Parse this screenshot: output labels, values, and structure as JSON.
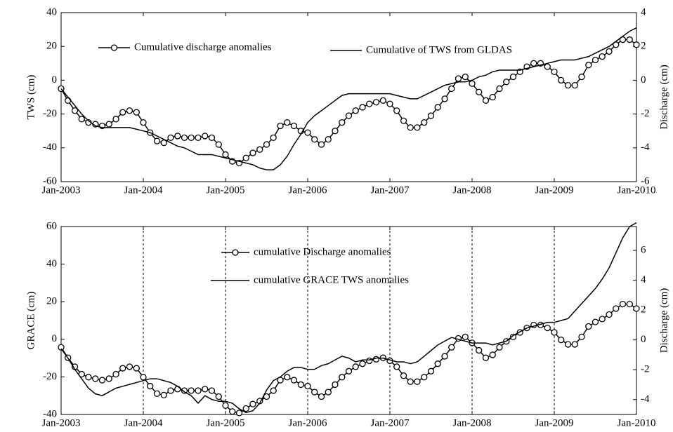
{
  "chart_data": [
    {
      "type": "line",
      "ylabel": "TWS (cm)",
      "y2label": "Discharge (cm)",
      "x": [
        2003,
        2003.083,
        2003.167,
        2003.25,
        2003.333,
        2003.417,
        2003.5,
        2003.583,
        2003.667,
        2003.75,
        2003.833,
        2003.917,
        2004,
        2004.083,
        2004.167,
        2004.25,
        2004.333,
        2004.417,
        2004.5,
        2004.583,
        2004.667,
        2004.75,
        2004.833,
        2004.917,
        2005,
        2005.083,
        2005.167,
        2005.25,
        2005.333,
        2005.417,
        2005.5,
        2005.583,
        2005.667,
        2005.75,
        2005.833,
        2005.917,
        2006,
        2006.083,
        2006.167,
        2006.25,
        2006.333,
        2006.417,
        2006.5,
        2006.583,
        2006.667,
        2006.75,
        2006.833,
        2006.917,
        2007,
        2007.083,
        2007.167,
        2007.25,
        2007.333,
        2007.417,
        2007.5,
        2007.583,
        2007.667,
        2007.75,
        2007.833,
        2007.917,
        2008,
        2008.083,
        2008.167,
        2008.25,
        2008.333,
        2008.417,
        2008.5,
        2008.583,
        2008.667,
        2008.75,
        2008.833,
        2008.917,
        2009,
        2009.083,
        2009.167,
        2009.25,
        2009.333,
        2009.417,
        2009.5,
        2009.583,
        2009.667,
        2009.75,
        2009.833,
        2009.917,
        2010
      ],
      "xlim": [
        2003,
        2010
      ],
      "xticks": [
        {
          "value": 2003,
          "label": "Jan-2003"
        },
        {
          "value": 2004,
          "label": "Jan-2004"
        },
        {
          "value": 2005,
          "label": "Jan-2005"
        },
        {
          "value": 2006,
          "label": "Jan-2006"
        },
        {
          "value": 2007,
          "label": "Jan-2007"
        },
        {
          "value": 2008,
          "label": "Jan-2008"
        },
        {
          "value": 2009,
          "label": "Jan-2009"
        },
        {
          "value": 2010,
          "label": "Jan-2010"
        }
      ],
      "ylim": [
        -60,
        40
      ],
      "yticks": [
        -60,
        -40,
        -20,
        0,
        20,
        40
      ],
      "y2lim": [
        -6,
        4
      ],
      "y2ticks": [
        -6,
        -4,
        -2,
        0,
        2,
        4
      ],
      "grid": false,
      "series": [
        {
          "name": "Cumulative discharge anomalies",
          "color": "#000000",
          "marker": "circle",
          "axis": "y2",
          "values": [
            -0.5,
            -1.2,
            -1.8,
            -2.3,
            -2.5,
            -2.6,
            -2.7,
            -2.6,
            -2.3,
            -1.9,
            -1.8,
            -1.9,
            -2.5,
            -3.1,
            -3.6,
            -3.7,
            -3.4,
            -3.3,
            -3.4,
            -3.4,
            -3.4,
            -3.3,
            -3.4,
            -3.8,
            -4.4,
            -4.8,
            -4.9,
            -4.6,
            -4.3,
            -4.1,
            -3.8,
            -3.4,
            -2.7,
            -2.5,
            -2.7,
            -3.0,
            -3.1,
            -3.5,
            -3.8,
            -3.5,
            -3.0,
            -2.5,
            -2.1,
            -1.8,
            -1.6,
            -1.4,
            -1.3,
            -1.2,
            -1.4,
            -1.8,
            -2.4,
            -2.8,
            -2.8,
            -2.5,
            -2.1,
            -1.6,
            -1.1,
            -0.5,
            0.1,
            0.2,
            -0.2,
            -0.7,
            -1.2,
            -1.0,
            -0.5,
            -0.1,
            0.2,
            0.5,
            0.8,
            1.0,
            1.0,
            0.8,
            0.5,
            0,
            -0.3,
            -0.3,
            0.2,
            0.9,
            1.2,
            1.4,
            1.7,
            2.1,
            2.4,
            2.4,
            2.1
          ]
        },
        {
          "name": "Cumulative of TWS from GLDAS",
          "color": "#000000",
          "values": [
            -5,
            -10,
            -15,
            -20,
            -24,
            -27,
            -28,
            -28,
            -28,
            -28,
            -28,
            -29,
            -30,
            -31,
            -33,
            -35,
            -37,
            -39,
            -40,
            -42,
            -44,
            -44,
            -44,
            -45,
            -46,
            -47,
            -48,
            -49,
            -50,
            -52,
            -53,
            -53,
            -50,
            -45,
            -38,
            -32,
            -25,
            -21,
            -18,
            -15,
            -12,
            -9,
            -8,
            -8,
            -8,
            -8,
            -8,
            -8,
            -8,
            -9,
            -10,
            -11,
            -11,
            -9,
            -7,
            -5,
            -3,
            -2,
            -1,
            -1,
            0,
            2,
            3,
            5,
            6,
            6,
            6,
            6,
            7,
            8,
            9,
            10,
            11,
            12,
            12,
            12,
            13,
            14,
            16,
            18,
            20,
            23,
            26,
            29,
            31
          ]
        }
      ]
    },
    {
      "type": "line",
      "ylabel": "GRACE (cm)",
      "y2label": "Discharge (cm)",
      "x": [
        2003,
        2003.083,
        2003.167,
        2003.25,
        2003.333,
        2003.417,
        2003.5,
        2003.583,
        2003.667,
        2003.75,
        2003.833,
        2003.917,
        2004,
        2004.083,
        2004.167,
        2004.25,
        2004.333,
        2004.417,
        2004.5,
        2004.583,
        2004.667,
        2004.75,
        2004.833,
        2004.917,
        2005,
        2005.083,
        2005.167,
        2005.25,
        2005.333,
        2005.417,
        2005.5,
        2005.583,
        2005.667,
        2005.75,
        2005.833,
        2005.917,
        2006,
        2006.083,
        2006.167,
        2006.25,
        2006.333,
        2006.417,
        2006.5,
        2006.583,
        2006.667,
        2006.75,
        2006.833,
        2006.917,
        2007,
        2007.083,
        2007.167,
        2007.25,
        2007.333,
        2007.417,
        2007.5,
        2007.583,
        2007.667,
        2007.75,
        2007.833,
        2007.917,
        2008,
        2008.083,
        2008.167,
        2008.25,
        2008.333,
        2008.417,
        2008.5,
        2008.583,
        2008.667,
        2008.75,
        2008.833,
        2008.917,
        2009,
        2009.083,
        2009.167,
        2009.25,
        2009.333,
        2009.417,
        2009.5,
        2009.583,
        2009.667,
        2009.75,
        2009.833,
        2009.917,
        2010
      ],
      "xlim": [
        2003,
        2010
      ],
      "xticks": [
        {
          "value": 2003,
          "label": "Jan-2003"
        },
        {
          "value": 2004,
          "label": "Jan-2004"
        },
        {
          "value": 2005,
          "label": "Jan-2005"
        },
        {
          "value": 2006,
          "label": "Jan-2006"
        },
        {
          "value": 2007,
          "label": "Jan-2007"
        },
        {
          "value": 2008,
          "label": "Jan-2008"
        },
        {
          "value": 2009,
          "label": "Jan-2009"
        },
        {
          "value": 2010,
          "label": "Jan-2010"
        }
      ],
      "ylim": [
        -40,
        60
      ],
      "yticks": [
        -40,
        -20,
        0,
        20,
        40,
        60
      ],
      "y2lim": [
        -5,
        7.6
      ],
      "y2ticks": [
        -4,
        -2,
        0,
        2,
        4,
        6
      ],
      "grid": "x",
      "series": [
        {
          "name": "cumulative Discharge anomalies",
          "color": "#000000",
          "marker": "circle",
          "axis": "y2",
          "values": [
            -0.5,
            -1.2,
            -1.8,
            -2.3,
            -2.5,
            -2.6,
            -2.7,
            -2.6,
            -2.3,
            -1.9,
            -1.8,
            -1.9,
            -2.5,
            -3.1,
            -3.6,
            -3.7,
            -3.4,
            -3.3,
            -3.4,
            -3.4,
            -3.4,
            -3.3,
            -3.4,
            -3.8,
            -4.4,
            -4.8,
            -4.9,
            -4.6,
            -4.3,
            -4.1,
            -3.8,
            -3.4,
            -2.7,
            -2.5,
            -2.7,
            -3.0,
            -3.1,
            -3.5,
            -3.8,
            -3.5,
            -3.0,
            -2.5,
            -2.1,
            -1.8,
            -1.6,
            -1.4,
            -1.3,
            -1.2,
            -1.4,
            -1.8,
            -2.4,
            -2.8,
            -2.8,
            -2.5,
            -2.1,
            -1.6,
            -1.1,
            -0.5,
            0.1,
            0.2,
            -0.2,
            -0.7,
            -1.2,
            -1.0,
            -0.5,
            -0.1,
            0.2,
            0.5,
            0.8,
            1.0,
            1.0,
            0.8,
            0.5,
            0,
            -0.3,
            -0.3,
            0.2,
            0.9,
            1.2,
            1.4,
            1.7,
            2.1,
            2.4,
            2.4,
            2.1
          ]
        },
        {
          "name": "cumulative GRACE TWS anomalies",
          "color": "#000000",
          "values": [
            -5,
            -10,
            -16,
            -21,
            -26,
            -29,
            -30,
            -28,
            -26,
            -25,
            -24,
            -23,
            -22,
            -21,
            -21,
            -22,
            -23,
            -25,
            -28,
            -30,
            -34,
            -30,
            -32,
            -33,
            -33,
            -34,
            -37,
            -39,
            -38,
            -34,
            -27,
            -22,
            -20,
            -17,
            -15,
            -15,
            -16,
            -16,
            -14,
            -13,
            -11,
            -9,
            -10,
            -12,
            -11,
            -11,
            -10,
            -10,
            -11,
            -12,
            -12,
            -13,
            -12,
            -9,
            -6,
            -3,
            -1,
            1,
            0,
            -1,
            -2,
            -2,
            -2,
            -3,
            -2,
            -1,
            2,
            4,
            6,
            7,
            8,
            9,
            9,
            10,
            11,
            15,
            19,
            23,
            27,
            32,
            38,
            46,
            54,
            60,
            62
          ]
        }
      ]
    }
  ]
}
